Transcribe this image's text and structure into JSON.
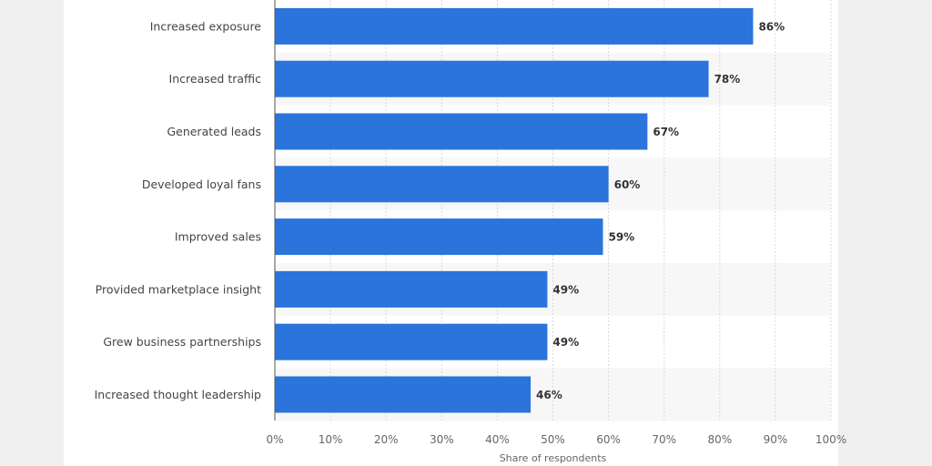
{
  "chart_data": {
    "type": "bar",
    "orientation": "horizontal",
    "categories": [
      "Increased exposure",
      "Increased traffic",
      "Generated leads",
      "Developed loyal fans",
      "Improved sales",
      "Provided marketplace insight",
      "Grew business partnerships",
      "Increased thought leadership"
    ],
    "values": [
      86,
      78,
      67,
      60,
      59,
      49,
      49,
      46
    ],
    "value_labels": [
      "86%",
      "78%",
      "67%",
      "60%",
      "59%",
      "49%",
      "49%",
      "46%"
    ],
    "xlabel": "Share of respondents",
    "ylabel": "",
    "xlim": [
      0,
      100
    ],
    "x_ticks": [
      0,
      10,
      20,
      30,
      40,
      50,
      60,
      70,
      80,
      90,
      100
    ],
    "x_tick_labels": [
      "0%",
      "10%",
      "20%",
      "30%",
      "40%",
      "50%",
      "60%",
      "70%",
      "80%",
      "90%",
      "100%"
    ],
    "grid": true,
    "legend": "none",
    "bar_color": "#2a74dc",
    "band_color": "#f7f7f7"
  }
}
